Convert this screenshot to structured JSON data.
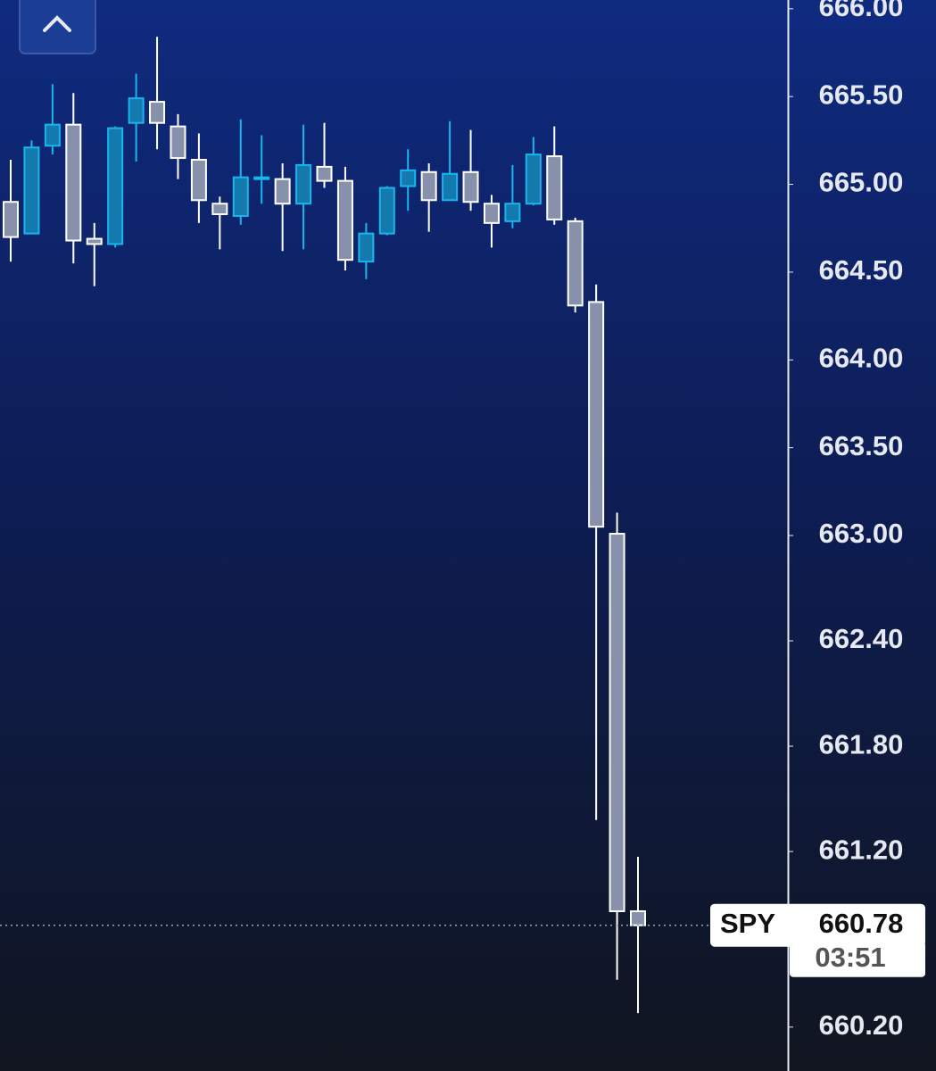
{
  "chart_data": {
    "type": "candlestick",
    "open": [
      664.9,
      664.72,
      665.22,
      665.34,
      664.69,
      664.66,
      665.35,
      665.47,
      665.33,
      665.14,
      664.89,
      664.82,
      665.03,
      665.03,
      664.89,
      665.1,
      665.02,
      664.56,
      664.72,
      664.99,
      665.07,
      664.91,
      665.07,
      664.89,
      664.79,
      664.89,
      665.16,
      664.79,
      664.33,
      663.01,
      660.86
    ],
    "high": [
      665.14,
      665.25,
      665.57,
      665.52,
      664.78,
      665.33,
      665.63,
      665.84,
      665.4,
      665.29,
      664.93,
      665.37,
      665.28,
      665.12,
      665.34,
      665.35,
      665.1,
      664.78,
      664.99,
      665.2,
      665.12,
      665.36,
      665.31,
      664.94,
      665.11,
      665.27,
      665.33,
      664.81,
      664.43,
      663.13,
      661.17
    ],
    "low": [
      664.56,
      664.72,
      665.17,
      664.55,
      664.42,
      664.64,
      665.13,
      665.2,
      665.03,
      664.78,
      664.63,
      664.77,
      664.89,
      664.62,
      664.63,
      664.98,
      664.51,
      664.46,
      664.71,
      664.85,
      664.73,
      664.91,
      664.85,
      664.64,
      664.75,
      664.88,
      664.77,
      664.27,
      661.38,
      660.47,
      660.28
    ],
    "close": [
      664.7,
      665.21,
      665.34,
      664.68,
      664.66,
      665.32,
      665.49,
      665.35,
      665.15,
      664.91,
      664.83,
      665.04,
      665.04,
      664.89,
      665.11,
      665.02,
      664.57,
      664.72,
      664.98,
      665.08,
      664.91,
      665.06,
      664.9,
      664.78,
      664.89,
      665.17,
      664.8,
      664.31,
      663.05,
      660.86,
      660.78
    ],
    "up_color": "#19b6ee",
    "up_fill": "#1479ad",
    "down_color": "#ffffff",
    "down_fill": "#8891ab",
    "ylim": [
      659.95,
      666.05
    ],
    "yticks": [
      {
        "value": 666,
        "label": "666.00"
      },
      {
        "value": 665.5,
        "label": "665.50"
      },
      {
        "value": 665,
        "label": "665.00"
      },
      {
        "value": 664.5,
        "label": "664.50"
      },
      {
        "value": 664,
        "label": "664.00"
      },
      {
        "value": 663.5,
        "label": "663.50"
      },
      {
        "value": 663,
        "label": "663.00"
      },
      {
        "value": 662.4,
        "label": "662.40"
      },
      {
        "value": 661.8,
        "label": "661.80"
      },
      {
        "value": 661.2,
        "label": "661.20"
      },
      {
        "value": 660.2,
        "label": "660.20"
      }
    ],
    "grid": false,
    "last_price": {
      "symbol": "SPY",
      "value": 660.78,
      "countdown": "03:51"
    }
  }
}
